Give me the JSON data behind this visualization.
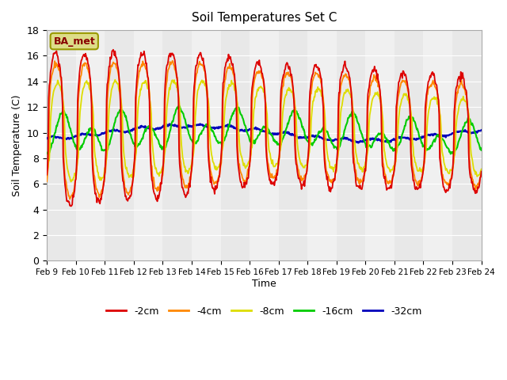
{
  "title": "Soil Temperatures Set C",
  "xlabel": "Time",
  "ylabel": "Soil Temperature (C)",
  "ylim": [
    0,
    18
  ],
  "yticks": [
    0,
    2,
    4,
    6,
    8,
    10,
    12,
    14,
    16,
    18
  ],
  "xtick_labels": [
    "Feb 9",
    "Feb 10",
    "Feb 11",
    "Feb 12",
    "Feb 13",
    "Feb 14",
    "Feb 15",
    "Feb 16",
    "Feb 17",
    "Feb 18",
    "Feb 19",
    "Feb 20",
    "Feb 21",
    "Feb 22",
    "Feb 23",
    "Feb 24"
  ],
  "colors": {
    "-2cm": "#dd0000",
    "-4cm": "#ff8800",
    "-8cm": "#dddd00",
    "-16cm": "#00cc00",
    "-32cm": "#0000bb"
  },
  "annotation_text": "BA_met",
  "annotation_bg": "#dddd88",
  "annotation_border": "#999900",
  "bg_stripe_colors": [
    "#e8e8e8",
    "#f0f0f0"
  ],
  "legend_entries": [
    "-2cm",
    "-4cm",
    "-8cm",
    "-16cm",
    "-32cm"
  ],
  "n_days": 15,
  "pts_per_day": 48
}
